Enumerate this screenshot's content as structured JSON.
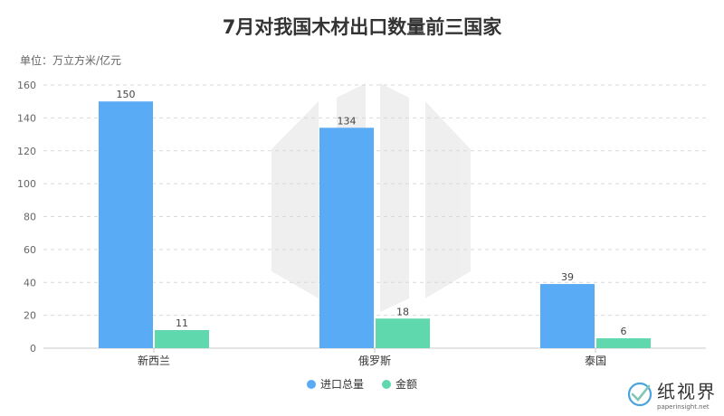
{
  "chart_data": {
    "type": "bar",
    "title": "7月对我国木材出口数量前三国家",
    "unit_label": "单位：万立方米/亿元",
    "categories": [
      "新西兰",
      "俄罗斯",
      "泰国"
    ],
    "series": [
      {
        "name": "进口总量",
        "color": "#5aabf5",
        "values": [
          150,
          134,
          39
        ]
      },
      {
        "name": "金额",
        "color": "#5ed8ac",
        "values": [
          11,
          18,
          6
        ]
      }
    ],
    "ylim": [
      0,
      160
    ],
    "yticks": [
      0,
      20,
      40,
      60,
      80,
      100,
      120,
      140,
      160
    ],
    "grid": true,
    "legend_position": "bottom"
  },
  "branding": {
    "logo_name": "纸视界",
    "logo_url": "paperinsight.net",
    "accent": "#4aa3df"
  }
}
